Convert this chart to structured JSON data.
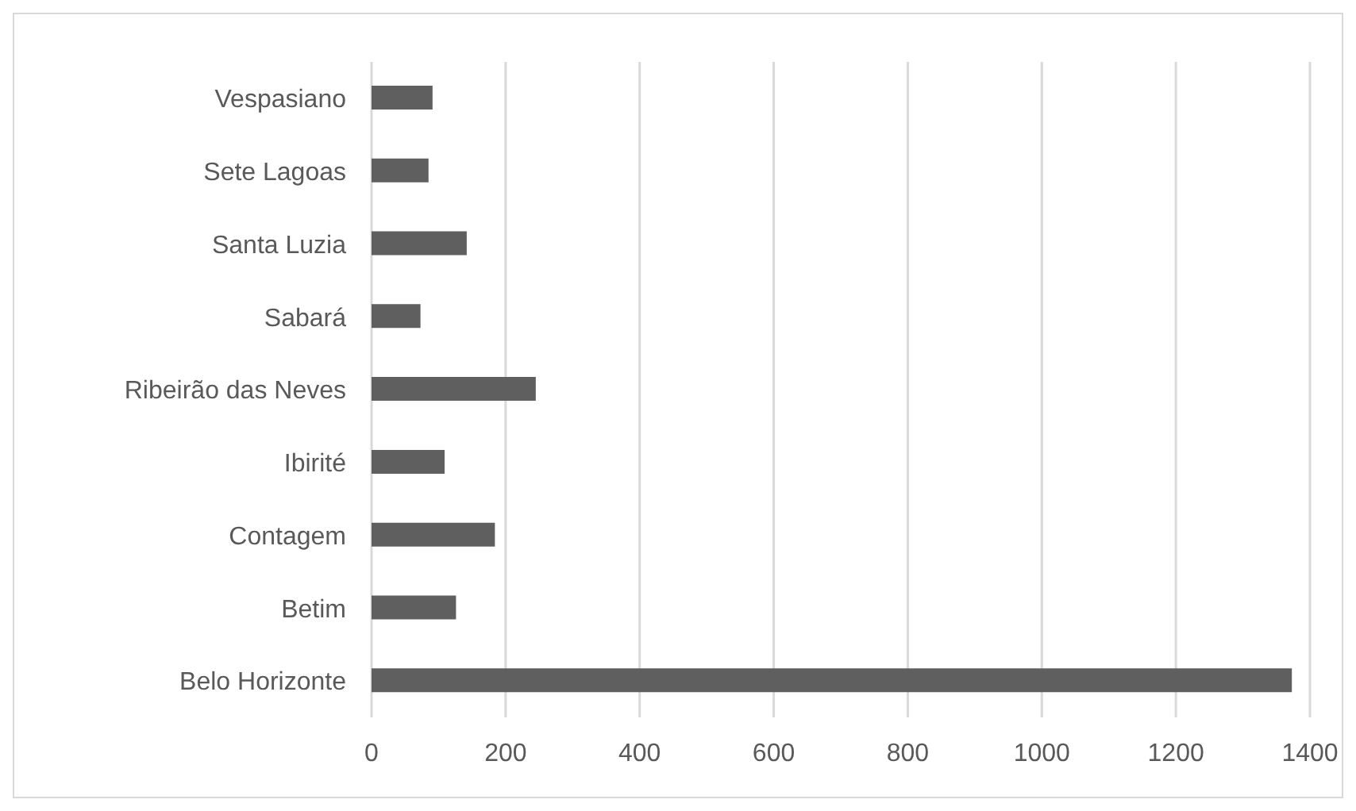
{
  "chart_data": {
    "type": "bar",
    "orientation": "horizontal",
    "categories": [
      "Vespasiano",
      "Sete Lagoas",
      "Santa Luzia",
      "Sabará",
      "Ribeirão das Neves",
      "Ibirité",
      "Contagem",
      "Betim",
      "Belo Horizonte"
    ],
    "values": [
      91,
      85,
      142,
      73,
      245,
      109,
      184,
      126,
      1373
    ],
    "color": "#5f5f5f",
    "xlim": [
      0,
      1400
    ],
    "xticks": [
      0,
      200,
      400,
      600,
      800,
      1000,
      1200,
      1400
    ],
    "grid": "x"
  }
}
